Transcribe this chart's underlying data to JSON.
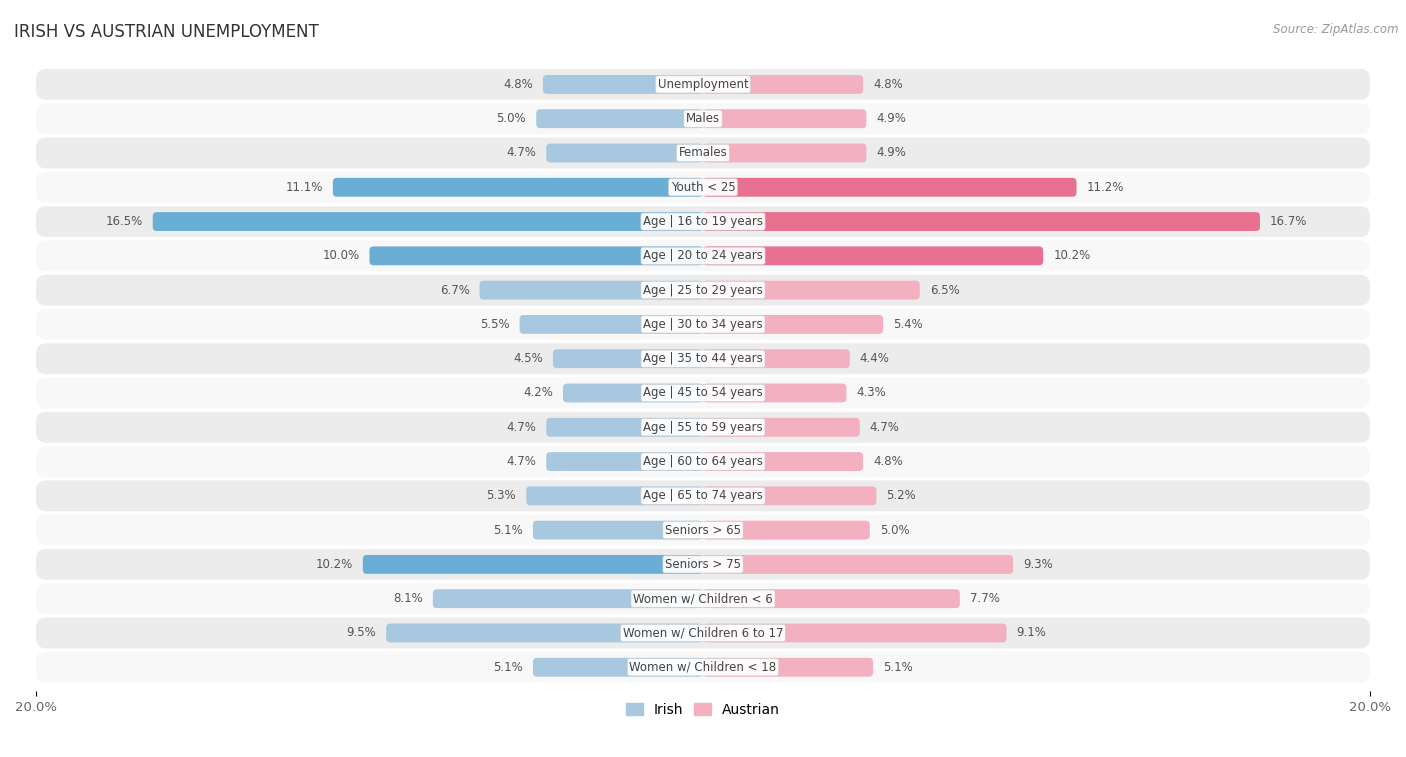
{
  "title": "IRISH VS AUSTRIAN UNEMPLOYMENT",
  "source": "Source: ZipAtlas.com",
  "categories": [
    "Unemployment",
    "Males",
    "Females",
    "Youth < 25",
    "Age | 16 to 19 years",
    "Age | 20 to 24 years",
    "Age | 25 to 29 years",
    "Age | 30 to 34 years",
    "Age | 35 to 44 years",
    "Age | 45 to 54 years",
    "Age | 55 to 59 years",
    "Age | 60 to 64 years",
    "Age | 65 to 74 years",
    "Seniors > 65",
    "Seniors > 75",
    "Women w/ Children < 6",
    "Women w/ Children 6 to 17",
    "Women w/ Children < 18"
  ],
  "irish": [
    4.8,
    5.0,
    4.7,
    11.1,
    16.5,
    10.0,
    6.7,
    5.5,
    4.5,
    4.2,
    4.7,
    4.7,
    5.3,
    5.1,
    10.2,
    8.1,
    9.5,
    5.1
  ],
  "austrian": [
    4.8,
    4.9,
    4.9,
    11.2,
    16.7,
    10.2,
    6.5,
    5.4,
    4.4,
    4.3,
    4.7,
    4.8,
    5.2,
    5.0,
    9.3,
    7.7,
    9.1,
    5.1
  ],
  "irish_color": "#a8c8e0",
  "austrian_color": "#f2b0c0",
  "irish_highlight_color": "#6aaed6",
  "austrian_highlight_color": "#e87090",
  "bar_height": 0.55,
  "max_val": 20.0,
  "bg_color": "#ffffff",
  "row_even_color": "#ececec",
  "row_odd_color": "#f8f8f8",
  "title_fontsize": 12,
  "val_fontsize": 8.5,
  "cat_fontsize": 8.5,
  "legend_fontsize": 10
}
